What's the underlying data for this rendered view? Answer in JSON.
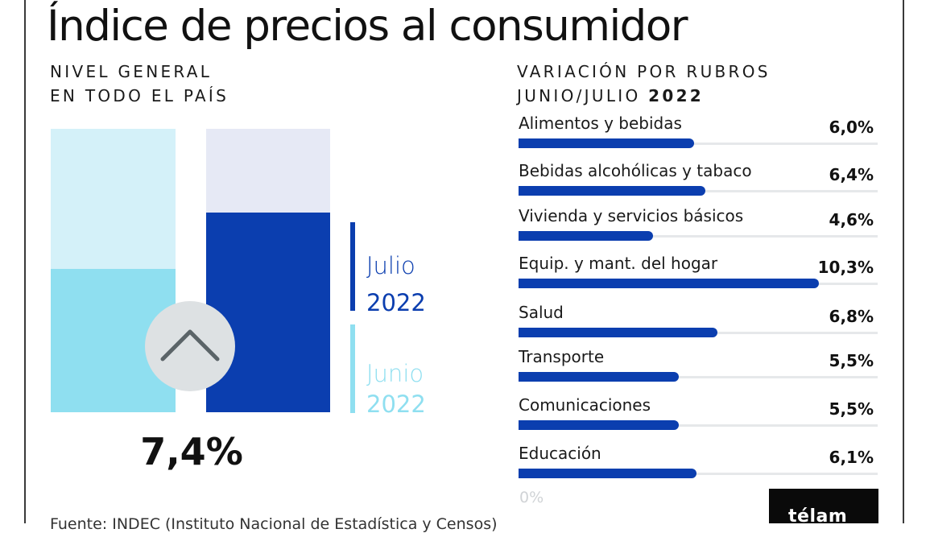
{
  "title": "Índice de precios al consumidor",
  "left": {
    "subtitle_line1": "NIVEL GENERAL",
    "subtitle_line2": "EN TODO EL PAÍS",
    "value_label": "7,4%",
    "icon": "chevron-up-icon",
    "colors": {
      "junio_bg": "#d4f1f9",
      "junio_fill": "#8fdff0",
      "julio_bg": "#e6e9f5",
      "julio_fill": "#0b3eaf"
    }
  },
  "legend": {
    "julio_month": "Julio",
    "julio_year": "2022",
    "junio_month": "Junio",
    "junio_year": "2022"
  },
  "right": {
    "subtitle_line1": "VARIACIÓN POR RUBROS",
    "subtitle_line2_prefix": "JUNIO/JULIO ",
    "subtitle_line2_bold": "2022",
    "axis_zero": "0%"
  },
  "chart_data": [
    {
      "type": "bar",
      "categories": [
        "Junio 2022",
        "Julio 2022"
      ],
      "values": [
        5.3,
        7.4
      ],
      "ylim": [
        0,
        10.5
      ]
    },
    {
      "type": "bar",
      "orientation": "horizontal",
      "categories": [
        "Alimentos y bebidas",
        "Bebidas alcohólicas y tabaco",
        "Vivienda y servicios básicos",
        "Equip. y mant. del hogar",
        "Salud",
        "Transporte",
        "Comunicaciones",
        "Educación"
      ],
      "values": [
        6.0,
        6.4,
        4.6,
        10.3,
        6.8,
        5.5,
        5.5,
        6.1
      ],
      "value_labels": [
        "6,0%",
        "6,4%",
        "4,6%",
        "10,3%",
        "6,8%",
        "5,5%",
        "5,5%",
        "6,1%"
      ],
      "xlim": [
        0,
        12.3
      ],
      "color": "#0b3eaf"
    }
  ],
  "logo": "télam",
  "source": "Fuente: INDEC (Instituto Nacional de Estadística y Censos)"
}
